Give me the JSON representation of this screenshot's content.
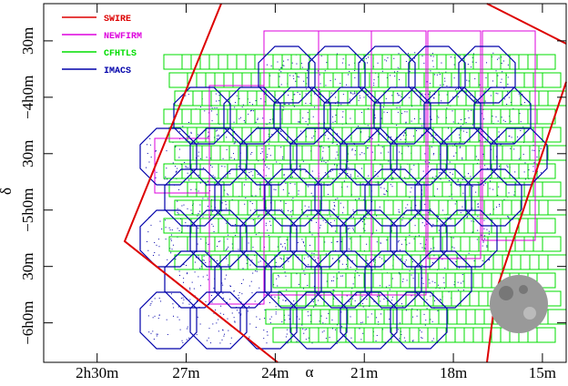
{
  "chart_data": {
    "type": "footprint",
    "x_label": "α",
    "y_label": "δ",
    "xlim": [
      31.8,
      14.2
    ],
    "xticks": [
      {
        "value": 30,
        "label": "2h30m"
      },
      {
        "value": 27,
        "label": "27m"
      },
      {
        "value": 24,
        "label": "24m"
      },
      {
        "value": 21,
        "label": "21m"
      },
      {
        "value": 18,
        "label": "18m"
      },
      {
        "value": 15,
        "label": "15m"
      }
    ],
    "ylim": [
      -6.35,
      -3.17
    ],
    "yticks": [
      {
        "value": -3.5,
        "label": "30m"
      },
      {
        "value": -4,
        "label": "−4h0m"
      },
      {
        "value": -4.5,
        "label": "30m"
      },
      {
        "value": -5,
        "label": "−5h0m"
      },
      {
        "value": -5.5,
        "label": "30m"
      },
      {
        "value": -6,
        "label": "−6h0m"
      }
    ],
    "legend": "upper left",
    "series": [
      {
        "name": "SWIRE",
        "color": "#dd0000"
      },
      {
        "name": "NEWFIRM",
        "color": "#dd00dd"
      },
      {
        "name": "CFHTLS",
        "color": "#00dd00"
      },
      {
        "name": "IMACS",
        "color": "#0000aa"
      }
    ]
  }
}
